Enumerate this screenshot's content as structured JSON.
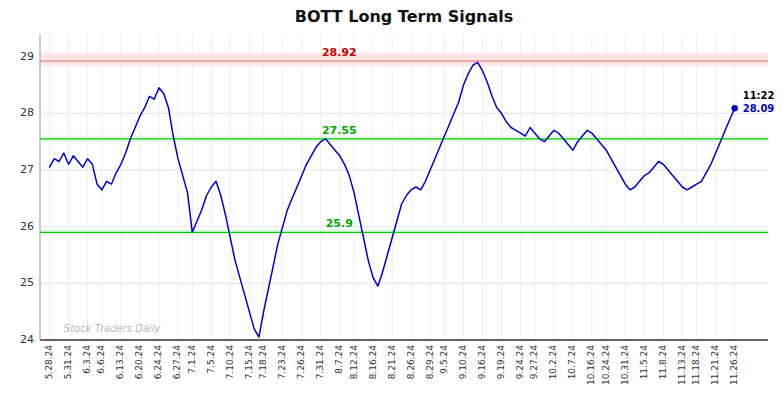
{
  "chart_data": {
    "type": "line",
    "title": "BOTT Long Term Signals",
    "watermark": "Stock Traders Daily",
    "categories": [
      "5.28.24",
      null,
      null,
      null,
      "5.31.24",
      null,
      null,
      null,
      "6.3.24",
      null,
      null,
      "6.6.24",
      null,
      null,
      null,
      "6.13.24",
      null,
      null,
      null,
      "6.20.24",
      null,
      null,
      null,
      "6.24.24",
      null,
      null,
      null,
      "6.27.24",
      null,
      null,
      "7.1.24",
      null,
      null,
      null,
      "7.5.24",
      null,
      null,
      null,
      "7.10.24",
      null,
      null,
      null,
      "7.15.24",
      null,
      null,
      "7.18.24",
      null,
      null,
      null,
      "7.23.24",
      null,
      null,
      null,
      "7.26.24",
      null,
      null,
      null,
      "7.31.24",
      null,
      null,
      null,
      "8.7.24",
      null,
      null,
      "8.12.24",
      null,
      null,
      null,
      "8.16.24",
      null,
      null,
      null,
      "8.21.24",
      null,
      null,
      null,
      "8.26.24",
      null,
      null,
      null,
      "8.29.24",
      null,
      null,
      "9.5.24",
      null,
      null,
      null,
      "9.10.24",
      null,
      null,
      null,
      "9.16.24",
      null,
      null,
      null,
      "9.19.24",
      null,
      null,
      null,
      "9.24.24",
      null,
      null,
      "9.27.24",
      null,
      null,
      null,
      "10.2.24",
      null,
      null,
      null,
      "10.7.24",
      null,
      null,
      null,
      "10.16.24",
      null,
      null,
      "10.24.24",
      null,
      null,
      null,
      "10.31.24",
      null,
      null,
      null,
      "11.5.24",
      null,
      null,
      null,
      "11.8.24",
      null,
      null,
      null,
      "11.13.24",
      null,
      null,
      "11.18.24",
      null,
      null,
      null,
      "11.21.24",
      null,
      null,
      null,
      "11.26.24"
    ],
    "values": [
      27.05,
      27.2,
      27.15,
      27.3,
      27.1,
      27.25,
      27.15,
      27.05,
      27.2,
      27.1,
      26.75,
      26.65,
      26.8,
      26.75,
      26.95,
      27.1,
      27.3,
      27.55,
      27.75,
      27.95,
      28.1,
      28.3,
      28.25,
      28.45,
      28.35,
      28.1,
      27.6,
      27.2,
      26.9,
      26.6,
      25.9,
      26.1,
      26.3,
      26.55,
      26.7,
      26.8,
      26.55,
      26.2,
      25.8,
      25.4,
      25.1,
      24.8,
      24.5,
      24.2,
      24.05,
      24.5,
      24.9,
      25.3,
      25.7,
      26.0,
      26.3,
      26.5,
      26.7,
      26.9,
      27.1,
      27.25,
      27.4,
      27.5,
      27.55,
      27.45,
      27.35,
      27.25,
      27.1,
      26.9,
      26.6,
      26.2,
      25.8,
      25.4,
      25.1,
      24.95,
      25.2,
      25.5,
      25.8,
      26.1,
      26.4,
      26.55,
      26.65,
      26.7,
      26.65,
      26.8,
      27.0,
      27.2,
      27.4,
      27.6,
      27.8,
      28.0,
      28.2,
      28.5,
      28.7,
      28.85,
      28.9,
      28.75,
      28.55,
      28.3,
      28.1,
      28.0,
      27.85,
      27.75,
      27.7,
      27.65,
      27.6,
      27.75,
      27.65,
      27.55,
      27.5,
      27.6,
      27.7,
      27.65,
      27.55,
      27.45,
      27.35,
      27.5,
      27.6,
      27.7,
      27.65,
      27.55,
      27.45,
      27.35,
      27.2,
      27.05,
      26.9,
      26.75,
      26.65,
      26.7,
      26.8,
      26.9,
      26.95,
      27.05,
      27.15,
      27.1,
      27.0,
      26.9,
      26.8,
      26.7,
      26.65,
      26.7,
      26.75,
      26.8,
      26.95,
      27.1,
      27.3,
      27.5,
      27.7,
      27.9,
      28.09
    ],
    "color": "#0000cc",
    "reference_lines": [
      {
        "value": 28.92,
        "color": "#ee8888",
        "band_color": "#ffdddd",
        "label_color": "#cc0000"
      },
      {
        "value": 27.55,
        "color": "#00cc00",
        "band_color": "#ddffdd",
        "label_color": "#00aa00"
      },
      {
        "value": 25.9,
        "color": "#00cc00",
        "band_color": "#ddffdd",
        "label_color": "#00aa00"
      }
    ],
    "last_point": {
      "value": 28.09,
      "label": "11:22",
      "color": "#0000cc"
    },
    "ylim": [
      24.0,
      29.4
    ],
    "yticks": [
      24,
      25,
      26,
      27,
      28,
      29
    ],
    "grid": true
  }
}
